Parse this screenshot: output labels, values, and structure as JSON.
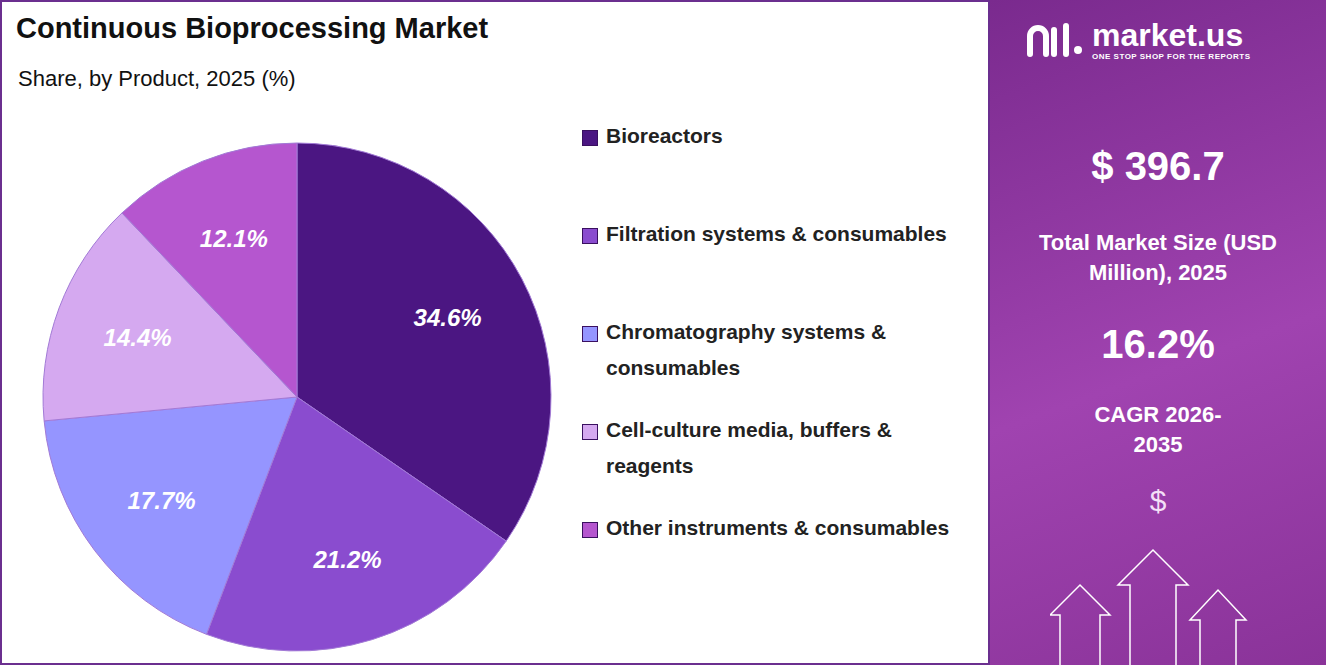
{
  "chart_data": {
    "type": "pie",
    "title": "Continuous Bioprocessing Market",
    "subtitle": "Share, by Product, 2025 (%)",
    "categories": [
      "Bioreactors",
      "Filtration systems & consumables",
      "Chromatography systems & consumables",
      "Cell-culture media, buffers & reagents",
      "Other instruments & consumables"
    ],
    "values": [
      34.6,
      21.2,
      17.7,
      14.4,
      12.1
    ],
    "value_labels": [
      "34.6%",
      "21.2%",
      "17.7%",
      "14.4%",
      "12.1%"
    ],
    "colors": [
      "#4b1682",
      "#8a4ccf",
      "#9595ff",
      "#d5a9f0",
      "#b556cf"
    ],
    "data_labels": true,
    "legend": "right"
  },
  "panel": {
    "brand": "market.us",
    "tagline": "ONE STOP SHOP FOR THE REPORTS",
    "market_size": "$ 396.7",
    "market_size_label": "Total Market Size (USD Million), 2025",
    "cagr": "16.2%",
    "cagr_label": "CAGR 2026-2035",
    "icon": "$"
  }
}
